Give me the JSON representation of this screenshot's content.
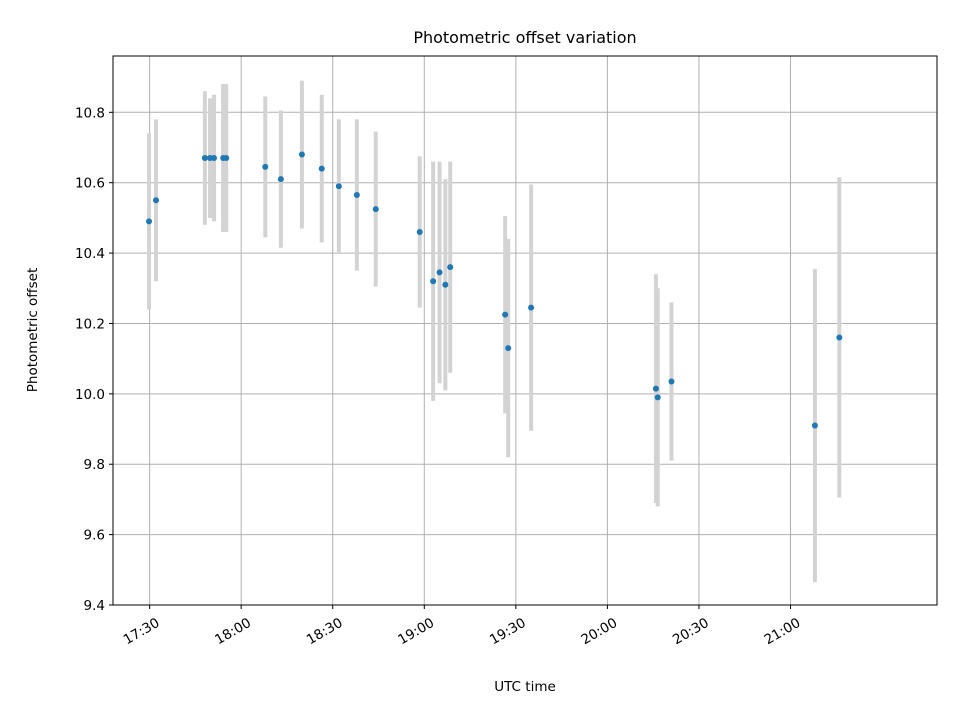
{
  "chart_data": {
    "type": "scatter",
    "title": "Photometric offset variation",
    "xlabel": "UTC time",
    "ylabel": "Photometric offset",
    "xlim": [
      "17:18",
      "21:48"
    ],
    "ylim": [
      9.4,
      10.96
    ],
    "x_ticks": [
      "17:30",
      "18:00",
      "18:30",
      "19:00",
      "19:30",
      "20:00",
      "20:30",
      "21:00"
    ],
    "y_ticks": [
      "9.4",
      "9.6",
      "9.8",
      "10.0",
      "10.2",
      "10.4",
      "10.6",
      "10.8"
    ],
    "grid": true,
    "series": [
      {
        "marker_color": "#1f77b4",
        "errorbar_color": "#d3d3d3",
        "points": [
          {
            "x": "17:29.8",
            "y": 10.49,
            "yerr": 0.25
          },
          {
            "x": "17:32.1",
            "y": 10.55,
            "yerr": 0.23
          },
          {
            "x": "17:48.1",
            "y": 10.67,
            "yerr": 0.19
          },
          {
            "x": "17:49.8",
            "y": 10.67,
            "yerr": 0.17
          },
          {
            "x": "17:51.1",
            "y": 10.67,
            "yerr": 0.18
          },
          {
            "x": "17:54.1",
            "y": 10.67,
            "yerr": 0.21
          },
          {
            "x": "17:55.1",
            "y": 10.67,
            "yerr": 0.21
          },
          {
            "x": "18:07.9",
            "y": 10.645,
            "yerr": 0.2
          },
          {
            "x": "18:13.0",
            "y": 10.61,
            "yerr": 0.195
          },
          {
            "x": "18:19.9",
            "y": 10.68,
            "yerr": 0.21
          },
          {
            "x": "18:26.4",
            "y": 10.64,
            "yerr": 0.21
          },
          {
            "x": "18:32.0",
            "y": 10.59,
            "yerr": 0.19
          },
          {
            "x": "18:37.9",
            "y": 10.565,
            "yerr": 0.215
          },
          {
            "x": "18:44.1",
            "y": 10.525,
            "yerr": 0.22
          },
          {
            "x": "18:58.5",
            "y": 10.46,
            "yerr": 0.215
          },
          {
            "x": "19:02.9",
            "y": 10.32,
            "yerr": 0.34
          },
          {
            "x": "19:05.0",
            "y": 10.345,
            "yerr": 0.315
          },
          {
            "x": "19:06.9",
            "y": 10.31,
            "yerr": 0.3
          },
          {
            "x": "19:08.5",
            "y": 10.36,
            "yerr": 0.3
          },
          {
            "x": "19:26.5",
            "y": 10.225,
            "yerr": 0.28
          },
          {
            "x": "19:27.5",
            "y": 10.13,
            "yerr": 0.31
          },
          {
            "x": "19:35.0",
            "y": 10.245,
            "yerr": 0.35
          },
          {
            "x": "20:15.9",
            "y": 10.015,
            "yerr": 0.325
          },
          {
            "x": "20:16.5",
            "y": 9.99,
            "yerr": 0.31
          },
          {
            "x": "20:21.0",
            "y": 10.035,
            "yerr": 0.225
          },
          {
            "x": "21:08.0",
            "y": 9.91,
            "yerr": 0.445
          },
          {
            "x": "21:16.0",
            "y": 10.16,
            "yerr": 0.455
          }
        ]
      }
    ]
  }
}
